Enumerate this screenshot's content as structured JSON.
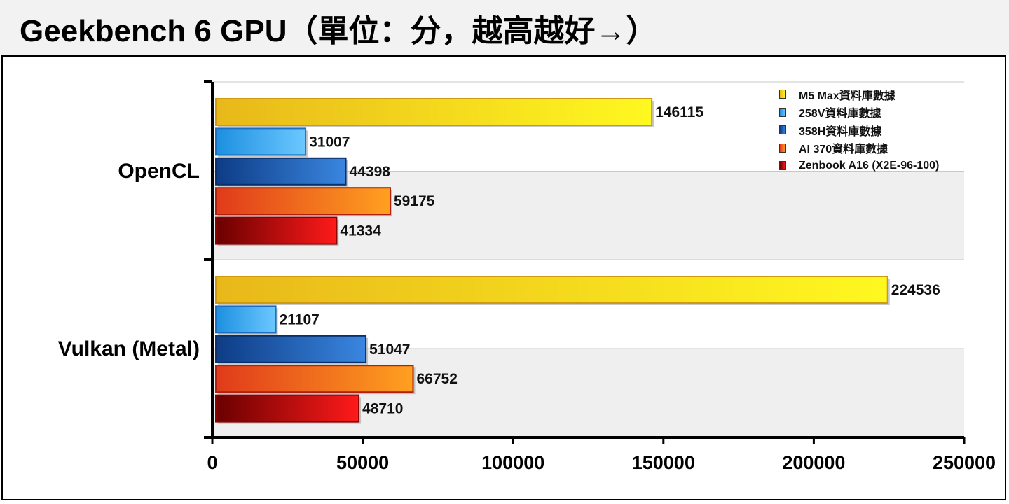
{
  "title": "Geekbench 6 GPU（單位：分，越高越好→）",
  "chart_data": {
    "type": "bar",
    "orientation": "horizontal",
    "categories": [
      "OpenCL",
      "Vulkan (Metal)"
    ],
    "series": [
      {
        "name": "M5 Max資料庫數據",
        "values": [
          146115,
          224536
        ],
        "colors": [
          "#e8b81a",
          "#fff820"
        ]
      },
      {
        "name": "258V資料庫數據",
        "values": [
          31007,
          21107
        ],
        "colors": [
          "#1c8fe0",
          "#6cc8ff"
        ]
      },
      {
        "name": "358H資料庫數據",
        "values": [
          44398,
          51047
        ],
        "colors": [
          "#0d3c85",
          "#3a86e0"
        ]
      },
      {
        "name": "AI 370資料庫數據",
        "values": [
          59175,
          66752
        ],
        "colors": [
          "#e03a1a",
          "#ffa020"
        ]
      },
      {
        "name": "Zenbook A16 (X2E-96-100)",
        "values": [
          41334,
          48710
        ],
        "colors": [
          "#6a0000",
          "#ff1a1a"
        ]
      }
    ],
    "x_ticks": [
      "0",
      "50000",
      "100000",
      "150000",
      "200000",
      "250000"
    ],
    "xlim": [
      0,
      250000
    ],
    "grid": true,
    "legend_position": "top-right",
    "data_labels": true
  }
}
